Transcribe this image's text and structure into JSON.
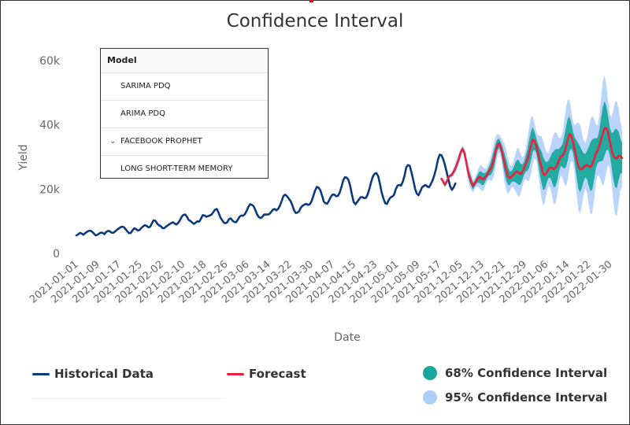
{
  "chart_data": {
    "type": "line",
    "title": "Confidence Interval",
    "xlabel": "Date",
    "ylabel": "Yield",
    "ylim": [
      0,
      60000
    ],
    "y_ticks": [
      "0",
      "20k",
      "40k",
      "60k"
    ],
    "x_ticks": [
      "2021-01-01",
      "2021-01-09",
      "2021-01-17",
      "2021-01-25",
      "2021-02-02",
      "2021-02-10",
      "2021-02-18",
      "2021-02-26",
      "2021-03-06",
      "2021-03-14",
      "2021-03-22",
      "2021-03-30",
      "2021-04-07",
      "2021-04-15",
      "2021-04-23",
      "2021-05-01",
      "2021-05-09",
      "2021-05-17",
      "2021-12-05",
      "2021-12-13",
      "2021-12-21",
      "2021-12-29",
      "2022-01-06",
      "2022-01-14",
      "2022-01-22",
      "2022-01-30"
    ],
    "grid": false,
    "legend_position": "bottom",
    "series": [
      {
        "name": "Historical Data",
        "color": "#0b3a7e",
        "x_start": 0,
        "values": [
          5600,
          5900,
          6400,
          6200,
          5800,
          6300,
          6700,
          7000,
          7100,
          6700,
          6200,
          5600,
          5800,
          6200,
          6500,
          6400,
          6000,
          6700,
          7000,
          6900,
          6500,
          6400,
          6800,
          7300,
          7700,
          8100,
          8300,
          8200,
          7600,
          6900,
          6300,
          6400,
          7200,
          7800,
          7600,
          7100,
          7300,
          7900,
          8400,
          8800,
          8600,
          8100,
          8300,
          9300,
          10300,
          10200,
          9300,
          8800,
          8500,
          7900,
          7800,
          8300,
          8700,
          9100,
          9400,
          9700,
          9300,
          9000,
          9500,
          10300,
          11400,
          12000,
          12100,
          11400,
          10400,
          10100,
          9600,
          9200,
          9600,
          10000,
          9900,
          10800,
          11900,
          11800,
          11400,
          11600,
          11800,
          12100,
          12800,
          13600,
          13800,
          12700,
          11300,
          10400,
          9600,
          9400,
          9700,
          10700,
          10900,
          10200,
          9800,
          9700,
          10500,
          11400,
          11800,
          11700,
          12200,
          13200,
          14500,
          15300,
          15100,
          14700,
          13500,
          12100,
          11300,
          11000,
          11400,
          12100,
          12100,
          12100,
          12300,
          12900,
          13600,
          13800,
          13400,
          13900,
          14900,
          16300,
          17900,
          18300,
          17800,
          17100,
          16300,
          15100,
          13500,
          12600,
          12700,
          13200,
          14300,
          14900,
          15200,
          15400,
          15100,
          15300,
          16200,
          17800,
          19500,
          20700,
          20500,
          19700,
          18000,
          16100,
          15600,
          15500,
          16500,
          17600,
          18300,
          18300,
          17800,
          17900,
          18800,
          20600,
          22600,
          23700,
          23600,
          22900,
          21100,
          18400,
          16000,
          15300,
          16000,
          16800,
          17500,
          17500,
          17200,
          17300,
          18400,
          20100,
          22300,
          24000,
          24800,
          25000,
          24000,
          21600,
          18900,
          17000,
          15600,
          15400,
          16600,
          17400,
          17700,
          18200,
          19900,
          21100,
          21300,
          21100,
          22300,
          24200,
          26800,
          27500,
          27200,
          25100,
          22800,
          20100,
          18600,
          18100,
          19300,
          20600,
          21000,
          21300,
          20800,
          20600,
          21600,
          22700,
          24400,
          26400,
          29100,
          30700,
          30600,
          29400,
          27600,
          25300,
          23000,
          20900,
          19800,
          20600,
          21800
        ]
      },
      {
        "name": "Forecast",
        "color": "#e8213d",
        "x_start": 208,
        "values": [
          23200,
          22400,
          21400,
          22300,
          23600,
          24200,
          24500,
          25500,
          26500,
          28000,
          29500,
          31400,
          32500,
          31500,
          28900,
          25900,
          23800,
          22400,
          20900,
          21700,
          22800,
          23400,
          23800,
          23300,
          23100,
          23700,
          24500,
          25500,
          26200,
          27600,
          29400,
          32000,
          33800,
          34200,
          32800,
          30400,
          28000,
          25900,
          24000,
          23400,
          23900,
          24500,
          25100,
          25500,
          25200,
          24700,
          25200,
          26300,
          27800,
          29000,
          31000,
          33300,
          35400,
          35100,
          33600,
          31500,
          28900,
          26900,
          24900,
          24400,
          25200,
          26100,
          26700,
          26700,
          26200,
          26600,
          27600,
          28900,
          30200,
          30400,
          31400,
          33100,
          35400,
          37200,
          36600,
          34700,
          32100,
          29600,
          27300,
          26200,
          26200,
          26800,
          27300,
          27500,
          27100,
          27000,
          27700,
          29300,
          31100,
          32000,
          33400,
          35400,
          37300,
          38900,
          39000,
          37500,
          34900,
          32200,
          30300,
          29700,
          29500,
          30400,
          30300,
          29700
        ]
      },
      {
        "name": "68% Confidence Interval",
        "color": "#1aa89c"
      },
      {
        "name": "95% Confidence Interval",
        "color": "#aecdfb"
      }
    ]
  },
  "model_dropdown": {
    "header": "Model",
    "options": [
      {
        "label": "SARIMA PDQ"
      },
      {
        "label": "ARIMA PDQ"
      },
      {
        "label": "FACEBOOK PROPHET",
        "chevron": "chevron-down-icon"
      },
      {
        "label": "LONG SHORT-TERM MEMORY"
      }
    ]
  },
  "legend": {
    "historical": "Historical Data",
    "forecast": "Forecast",
    "ci68": "68% Confidence Interval",
    "ci95": "95% Confidence Interval"
  },
  "colors": {
    "historical": "#0b3a7e",
    "forecast": "#e8213d",
    "ci68": "#1aa89c",
    "ci95": "#aecdfb",
    "accent_mark": "#e8001c"
  }
}
